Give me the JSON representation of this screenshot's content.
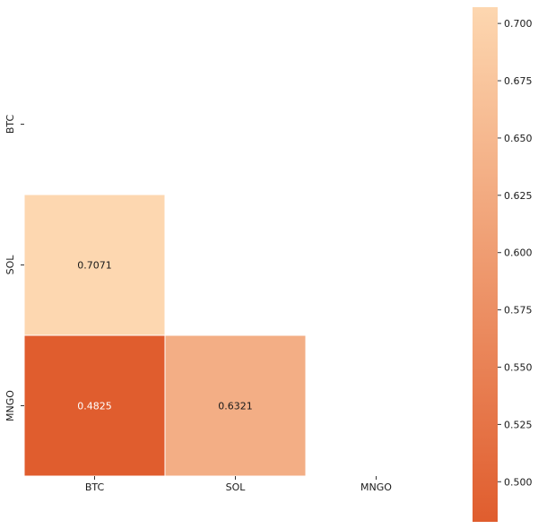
{
  "chart_data": {
    "type": "heatmap",
    "title": "",
    "xlabel": "",
    "ylabel": "",
    "rows": [
      "BTC",
      "SOL",
      "MNGO"
    ],
    "columns": [
      "BTC",
      "SOL",
      "MNGO"
    ],
    "mask": "upper-triangle-including-diagonal",
    "cells": [
      {
        "row": "SOL",
        "col": "BTC",
        "value": 0.7071,
        "label": "0.7071"
      },
      {
        "row": "MNGO",
        "col": "BTC",
        "value": 0.4825,
        "label": "0.4825"
      },
      {
        "row": "MNGO",
        "col": "SOL",
        "value": 0.6321,
        "label": "0.6321"
      }
    ],
    "colorbar": {
      "min": 0.4825,
      "max": 0.7071,
      "ticks": [
        0.5,
        0.525,
        0.55,
        0.575,
        0.6,
        0.625,
        0.65,
        0.675,
        0.7
      ],
      "tick_labels": [
        "0.500",
        "0.525",
        "0.550",
        "0.575",
        "0.600",
        "0.625",
        "0.650",
        "0.675",
        "0.700"
      ],
      "color_low": "#e05d2e",
      "color_high": "#fdd7b0",
      "placement": "right"
    },
    "label_colors": {
      "dark_cell": "#ffffff",
      "light_cell": "#1a1a1a"
    },
    "cell_border": "#ffffff"
  }
}
